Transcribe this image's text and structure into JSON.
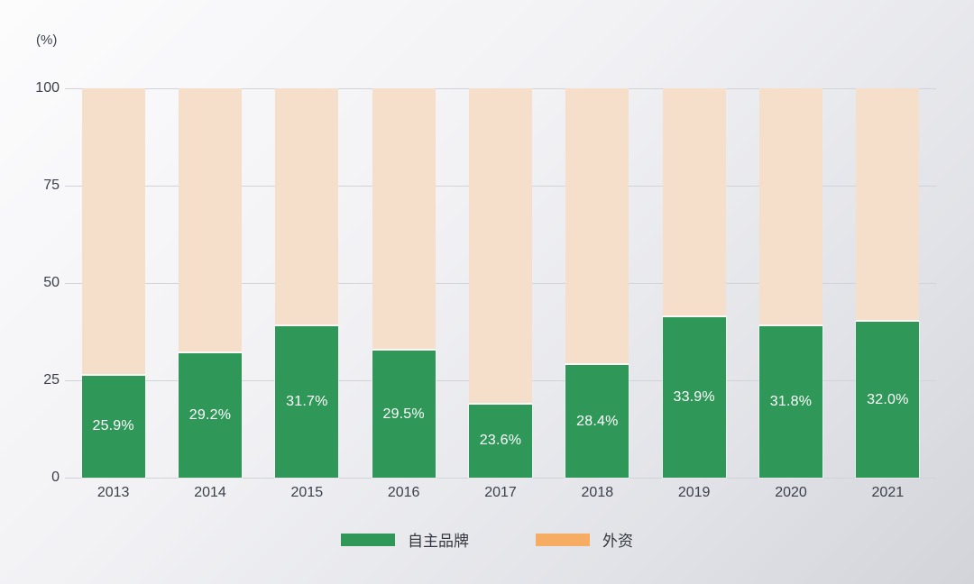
{
  "chart_data": {
    "type": "bar",
    "variant": "stacked-100-percent",
    "title": "",
    "ylabel": "(%)",
    "categories": [
      "2013",
      "2014",
      "2015",
      "2016",
      "2017",
      "2018",
      "2019",
      "2020",
      "2021"
    ],
    "series": [
      {
        "name": "自主品牌",
        "color_hex": "#2f9858",
        "values": [
          25.9,
          29.2,
          31.7,
          29.5,
          23.6,
          28.4,
          33.9,
          31.8,
          32.0
        ],
        "data_labels": [
          "25.9%",
          "29.2%",
          "31.7%",
          "29.5%",
          "23.6%",
          "28.4%",
          "33.9%",
          "31.8%",
          "32.0%"
        ]
      },
      {
        "name": "外资",
        "color_bar_hex": "#f5dfca",
        "color_legend_hex": "#f6ac63",
        "values": [
          74.1,
          70.8,
          68.3,
          70.5,
          76.4,
          71.6,
          66.1,
          68.2,
          68.0
        ]
      }
    ],
    "ylim": [
      0,
      100
    ],
    "ytick_values": [
      100,
      75,
      50,
      25,
      0
    ],
    "ytick_labels": [
      "100",
      "75",
      "50",
      "25",
      "0"
    ],
    "grid": "horizontal",
    "legend_position": "bottom-center",
    "render_hints": {
      "green_segment_drawn_pct": [
        26.2,
        31.9,
        38.9,
        32.6,
        18.8,
        28.9,
        41.2,
        38.9,
        40.0
      ]
    }
  },
  "legend": {
    "items": [
      {
        "label": "自主品牌",
        "swatch_hex": "#2f9858"
      },
      {
        "label": "外资",
        "swatch_hex": "#f6ac63"
      }
    ]
  },
  "colors": {
    "background_start": "#fcfcfd",
    "background_end": "#d2d4da",
    "gridline": "#d2d3d8",
    "axis_text": "#3a3f49",
    "bar_label_text": "#ffffff",
    "segment_gap": "#fafafa"
  }
}
